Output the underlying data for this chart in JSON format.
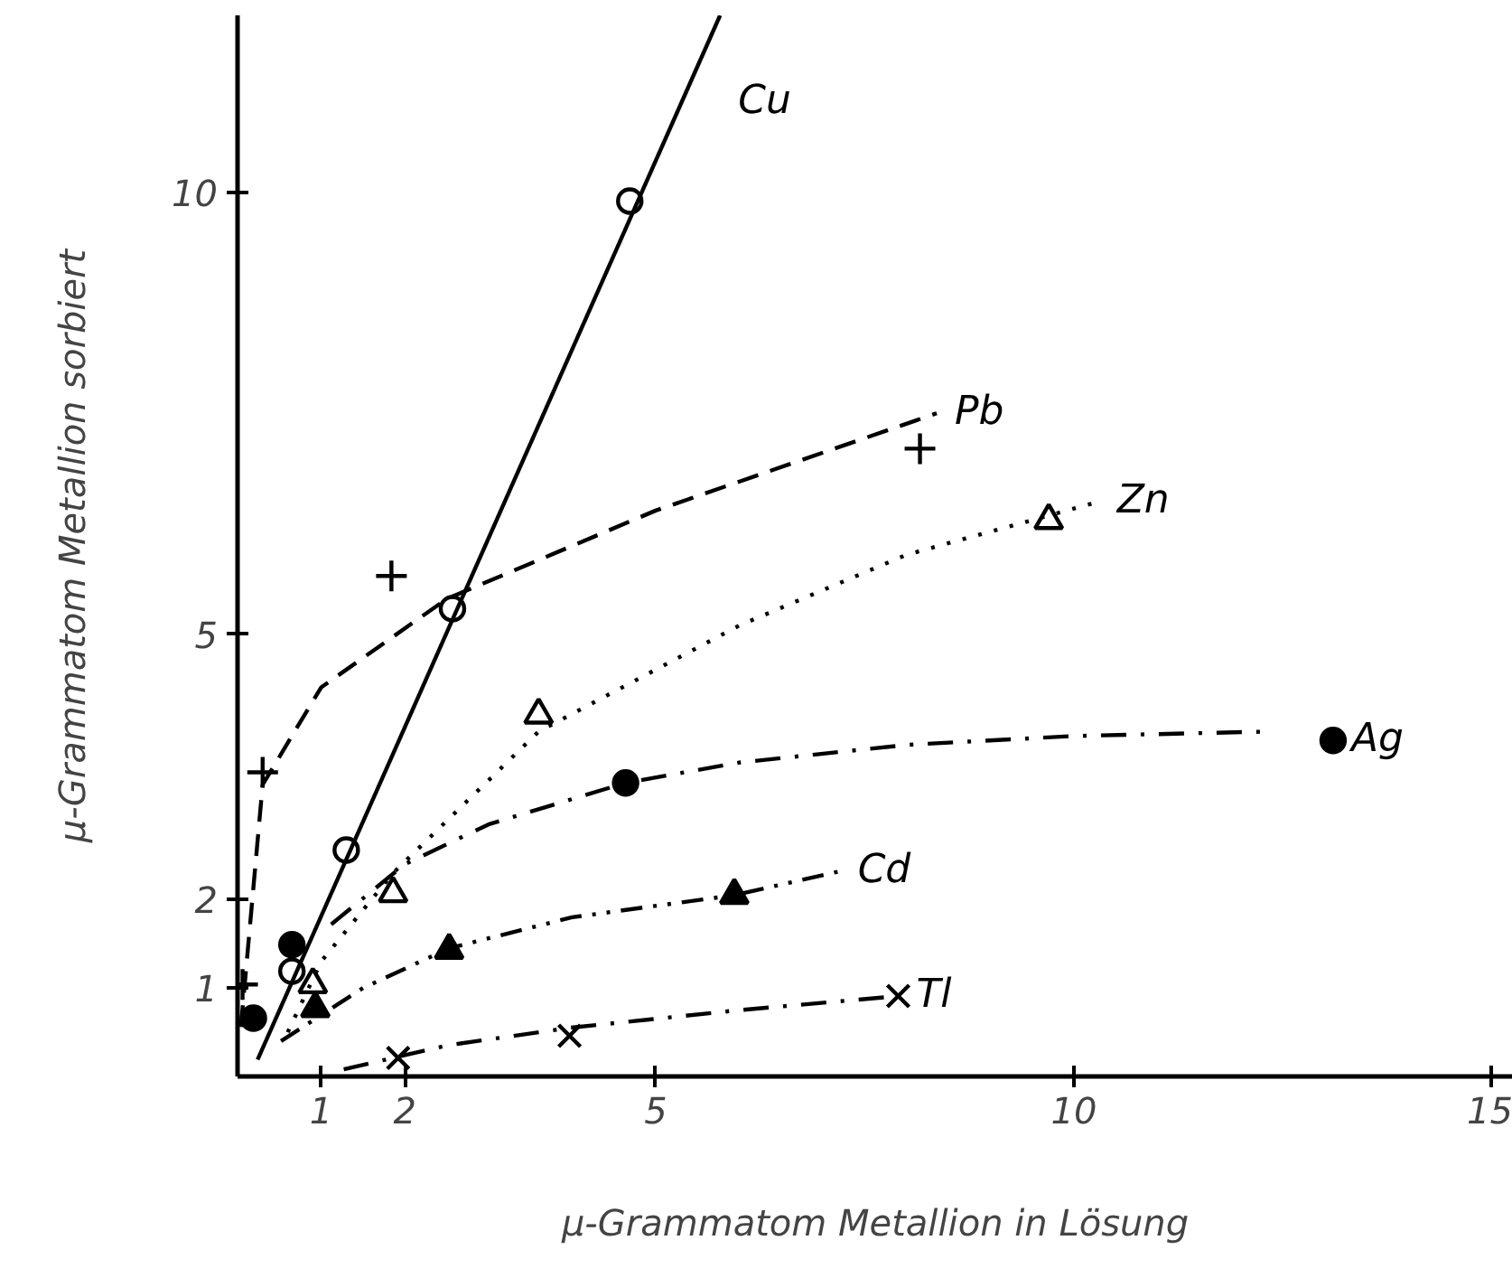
{
  "chart_data": {
    "type": "scatter",
    "xlabel": "μ-Grammatom Metallion in Lösung",
    "ylabel": "μ-Grammatom Metallion sorbiert",
    "xlim": [
      0,
      15.25
    ],
    "ylim": [
      0,
      12
    ],
    "xticks": [
      1,
      2,
      5,
      10,
      15
    ],
    "yticks": [
      1,
      2,
      5,
      10
    ],
    "grid": false,
    "series": [
      {
        "marker": "circle_open",
        "color": "#000000",
        "x": [
          0.65,
          1.3,
          2.57,
          4.69
        ],
        "values": [
          1.19,
          2.56,
          5.29,
          9.9
        ]
      },
      {
        "type": "line",
        "name": "Cu",
        "line_style": "solid",
        "color": "#000000",
        "x": [
          0.24,
          5.77
        ],
        "values": [
          0.19,
          12.0
        ]
      },
      {
        "marker": "cross",
        "color": "#000000",
        "x": [
          0.06,
          0.3,
          1.84,
          8.16
        ],
        "values": [
          1.04,
          3.44,
          5.66,
          7.1
        ]
      },
      {
        "type": "line",
        "name": "Pb",
        "line_style": "dashed",
        "color": "#000000",
        "x": [
          0.04,
          0.3,
          1.0,
          2.5,
          5.0,
          8.36
        ],
        "values": [
          0.56,
          3.3,
          4.4,
          5.4,
          6.4,
          7.5
        ]
      },
      {
        "marker": "triangle_open",
        "color": "#000000",
        "x": [
          0.9,
          1.86,
          3.6,
          9.7
        ],
        "values": [
          1.04,
          2.07,
          4.09,
          6.29
        ]
      },
      {
        "type": "line",
        "name": "Zn",
        "line_style": "dotted",
        "color": "#000000",
        "x": [
          0.6,
          1.0,
          1.86,
          3.6,
          6.0,
          8.0,
          10.3
        ],
        "values": [
          0.5,
          1.3,
          2.3,
          3.9,
          5.1,
          5.9,
          6.5
        ]
      },
      {
        "marker": "circle",
        "color": "#000000",
        "x": [
          0.19,
          0.65,
          4.64,
          13.1
        ],
        "values": [
          0.66,
          1.49,
          3.32,
          3.8
        ]
      },
      {
        "type": "line",
        "name": "Ag",
        "line_style": "dashdot",
        "color": "#000000",
        "x": [
          1.12,
          2.0,
          3.0,
          4.64,
          6.0,
          8.0,
          10.0,
          12.3
        ],
        "values": [
          1.72,
          2.4,
          2.85,
          3.32,
          3.55,
          3.75,
          3.85,
          3.9
        ]
      },
      {
        "marker": "triangle",
        "color": "#000000",
        "x": [
          0.93,
          2.53,
          5.94
        ],
        "values": [
          0.77,
          1.43,
          2.05
        ]
      },
      {
        "type": "line",
        "name": "Cd",
        "line_style": "dashdotdot",
        "color": "#000000",
        "x": [
          0.52,
          1.5,
          2.53,
          4.0,
          5.94,
          7.2
        ],
        "values": [
          0.4,
          1.0,
          1.45,
          1.8,
          2.05,
          2.32
        ]
      },
      {
        "marker": "x",
        "color": "#000000",
        "x": [
          1.92,
          3.97,
          7.9
        ],
        "values": [
          0.21,
          0.46,
          0.91
        ]
      },
      {
        "type": "line",
        "name": "Tl",
        "line_style": "dashdot",
        "color": "#000000",
        "x": [
          1.27,
          2.5,
          3.97,
          6.0,
          7.8
        ],
        "values": [
          0.08,
          0.35,
          0.55,
          0.75,
          0.9
        ]
      }
    ]
  }
}
